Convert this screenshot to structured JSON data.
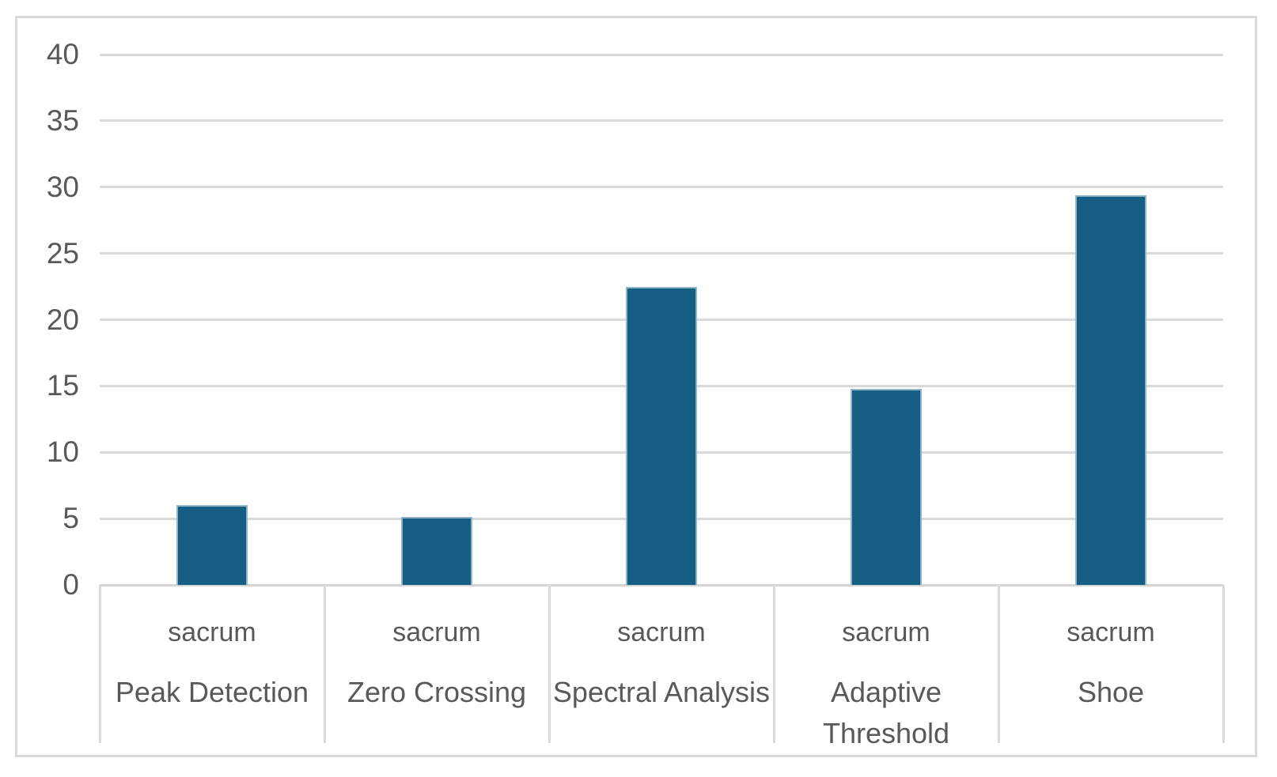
{
  "chart_data": {
    "type": "bar",
    "title": "",
    "xlabel": "",
    "ylabel": "",
    "categories": [
      {
        "group": "sacrum",
        "label": "Peak Detection",
        "lines": [
          "Peak Detection"
        ]
      },
      {
        "group": "sacrum",
        "label": "Zero Crossing",
        "lines": [
          "Zero Crossing"
        ]
      },
      {
        "group": "sacrum",
        "label": "Spectral Analysis",
        "lines": [
          "Spectral Analysis"
        ]
      },
      {
        "group": "sacrum",
        "label": "Adaptive Threshold",
        "lines": [
          "Adaptive",
          "Threshold"
        ]
      },
      {
        "group": "sacrum",
        "label": "Shoe",
        "lines": [
          "Shoe"
        ]
      }
    ],
    "values": [
      6.0,
      5.1,
      22.5,
      14.8,
      29.4
    ],
    "ylim": [
      0,
      40
    ],
    "yticks": [
      0,
      5,
      10,
      15,
      20,
      25,
      30,
      35,
      40
    ],
    "grid": true,
    "legend": false,
    "colors": {
      "bar_fill": "#165E83",
      "bar_edge": "#8FB4C7",
      "gridline": "#D9D9D9",
      "axis_line": "#D5D5D5",
      "axis_text": "#595959",
      "frame_border": "#D9D9D9",
      "background": "#FFFFFF"
    }
  }
}
